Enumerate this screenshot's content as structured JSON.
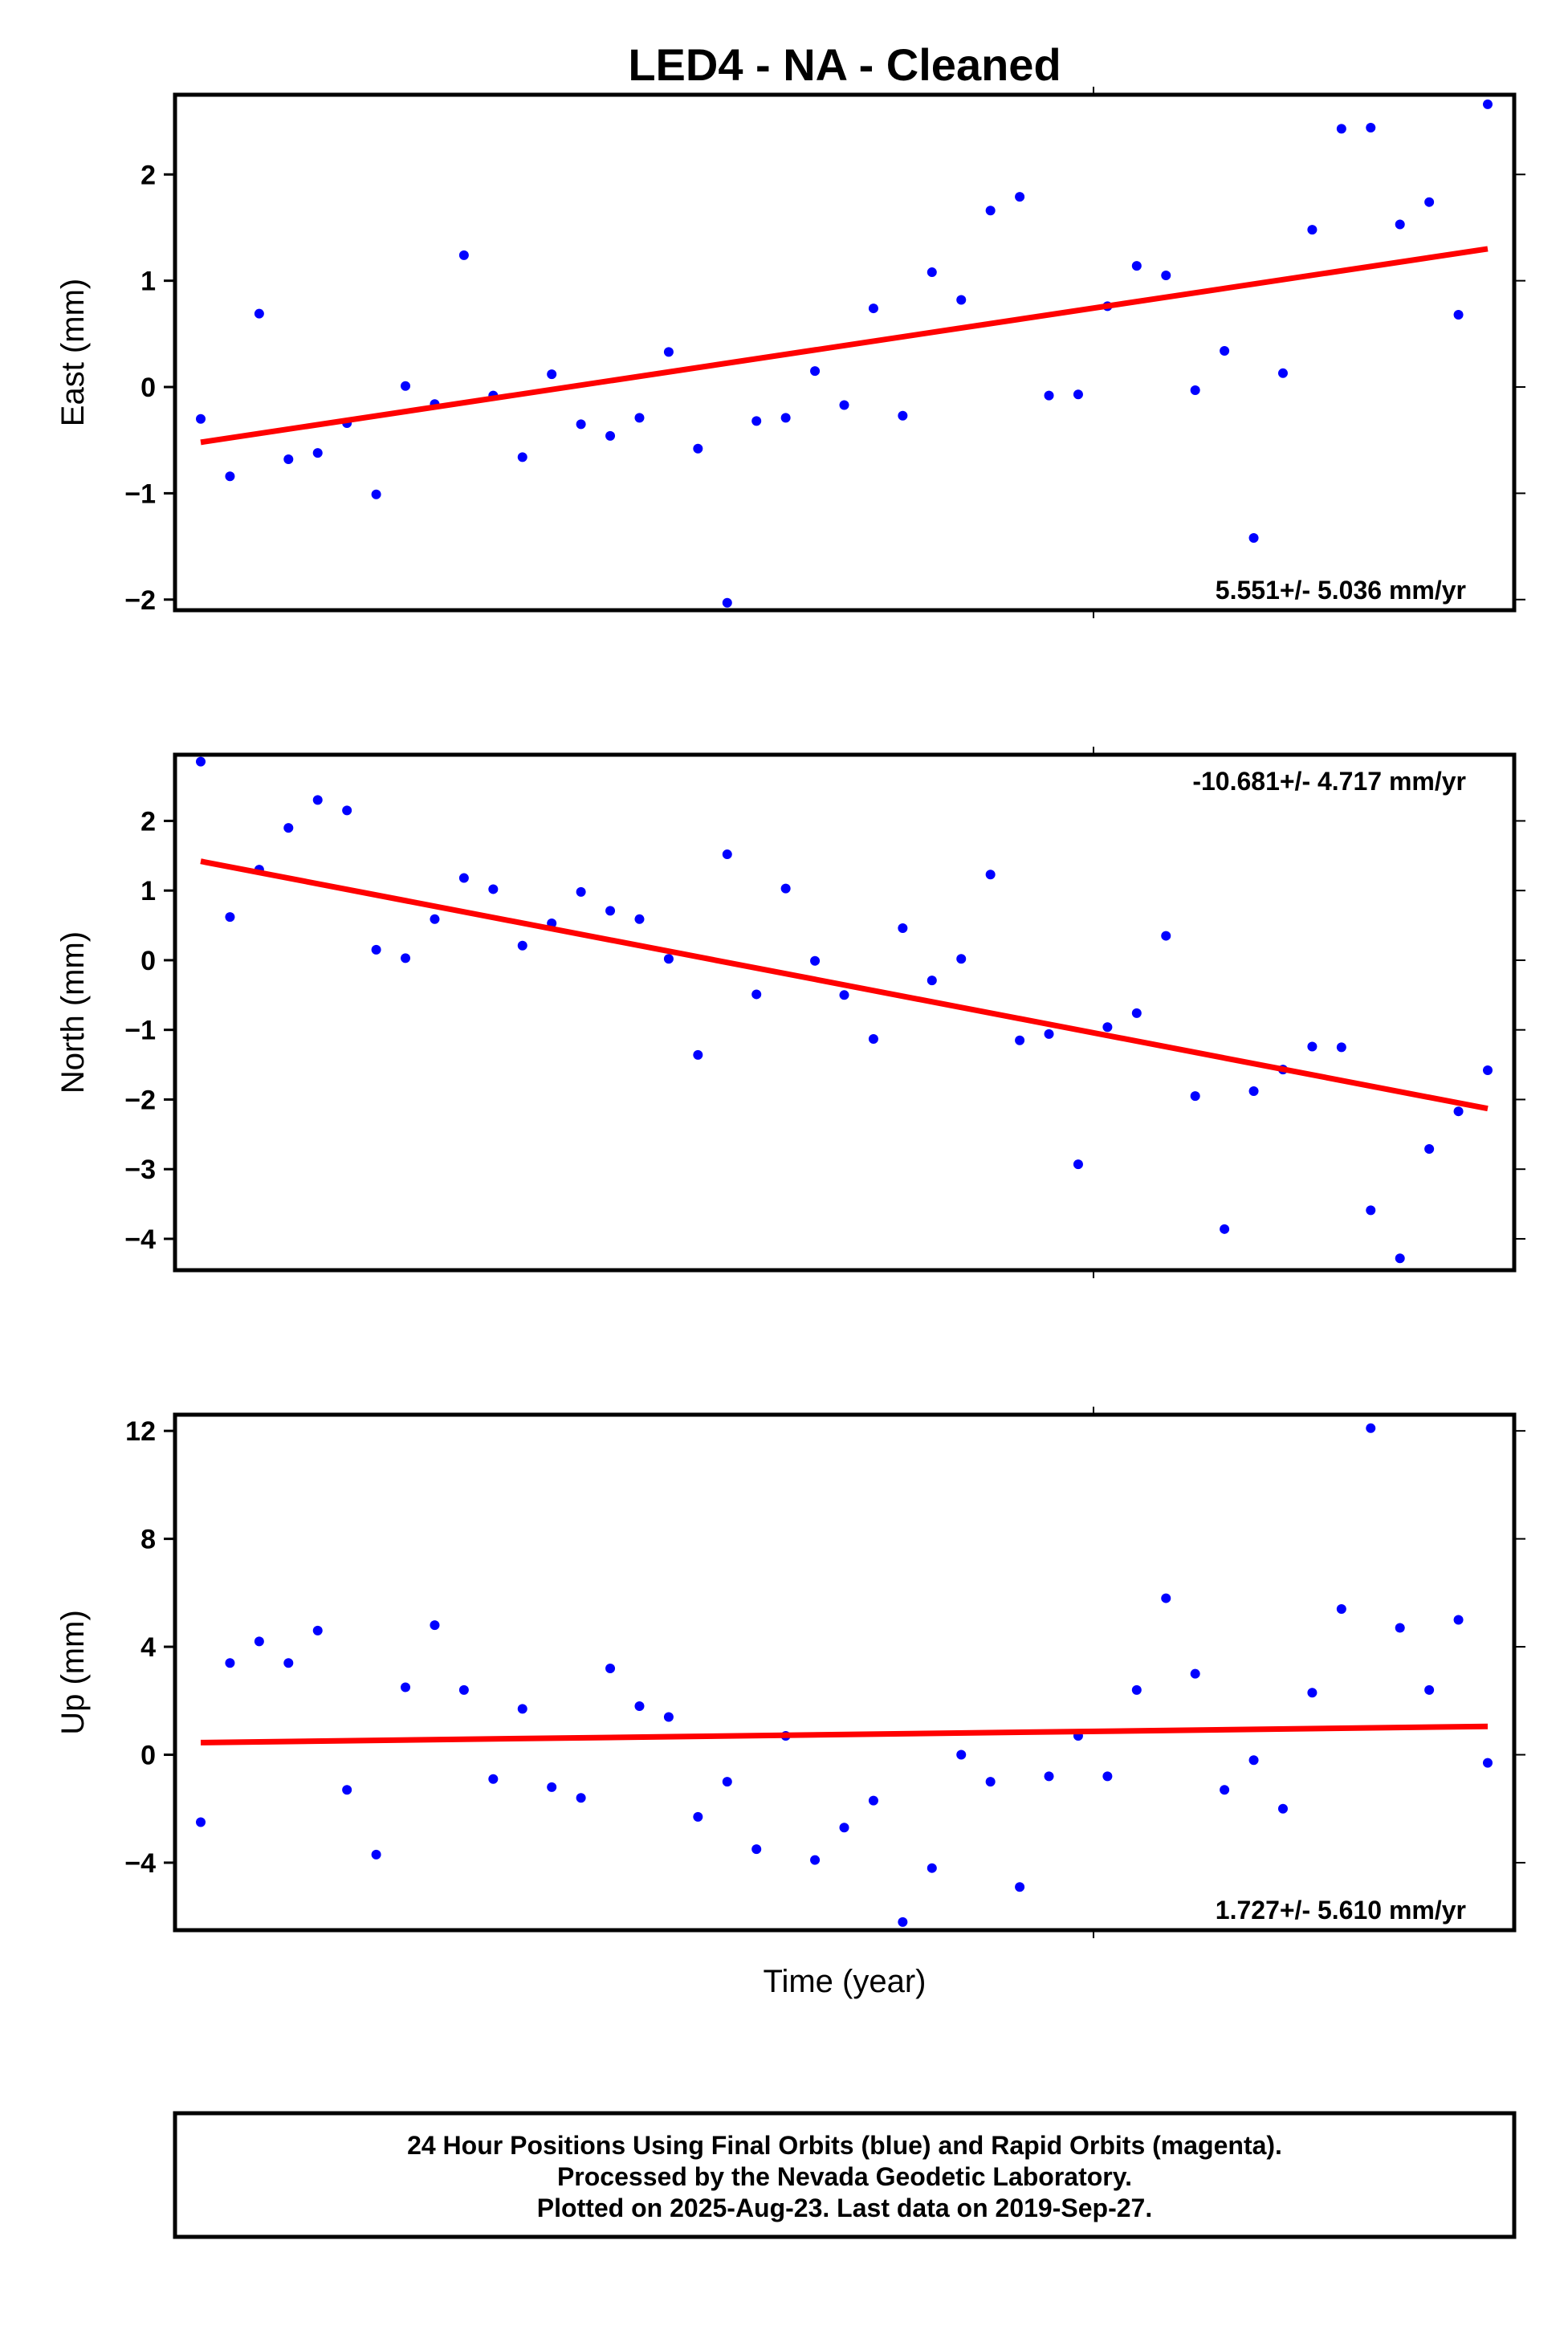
{
  "title": "LED4  - NA - Cleaned",
  "xlabel": "Time (year)",
  "colors": {
    "points": "#0000ff",
    "trend": "#ff0000",
    "frame": "#000000"
  },
  "footer": {
    "line1": "24 Hour Positions Using Final Orbits (blue) and Rapid Orbits (magenta).",
    "line2": "Processed by the Nevada Geodetic Laboratory.",
    "line3": "Plotted on 2025-Aug-23. Last data on 2019-Sep-27."
  },
  "chart_data": [
    {
      "type": "scatter",
      "ylabel": "East (mm)",
      "ylim": [
        -2.1,
        2.75
      ],
      "yticks": [
        -2,
        -1,
        0,
        1,
        2
      ],
      "ytick_labels": [
        "−2",
        "−1",
        "0",
        "1",
        "2"
      ],
      "rate_text": "5.551+/- 5.036 mm/yr",
      "rate_position": "bottom-right",
      "trend": {
        "start": -0.52,
        "end": 1.3
      },
      "values": [
        -0.3,
        -0.84,
        0.69,
        -0.68,
        -0.62,
        -0.34,
        -1.01,
        0.01,
        -0.16,
        1.24,
        -0.08,
        -0.66,
        0.12,
        -0.35,
        -0.46,
        -0.29,
        0.33,
        -0.58,
        -2.03,
        -0.32,
        -0.29,
        0.15,
        -0.17,
        0.74,
        -0.27,
        1.08,
        0.82,
        1.66,
        1.79,
        -0.08,
        -0.07,
        0.76,
        1.14,
        1.05,
        -0.03,
        0.34,
        -1.42,
        0.13,
        1.48,
        2.43,
        2.44,
        1.53,
        1.74,
        0.68,
        2.66
      ]
    },
    {
      "type": "scatter",
      "ylabel": "North (mm)",
      "ylim": [
        -4.45,
        2.95
      ],
      "yticks": [
        -4,
        -3,
        -2,
        -1,
        0,
        1,
        2
      ],
      "ytick_labels": [
        "−4",
        "−3",
        "−2",
        "−1",
        "0",
        "1",
        "2"
      ],
      "rate_text": "-10.681+/- 4.717 mm/yr",
      "rate_position": "top-right",
      "trend": {
        "start": 1.42,
        "end": -2.13
      },
      "values": [
        2.85,
        0.62,
        1.3,
        1.9,
        2.3,
        2.15,
        0.15,
        0.03,
        0.59,
        1.18,
        1.02,
        0.21,
        0.53,
        0.98,
        0.71,
        0.59,
        0.02,
        -1.36,
        1.52,
        -0.49,
        1.03,
        -0.01,
        -0.5,
        -1.13,
        0.46,
        -0.29,
        0.02,
        1.23,
        -1.15,
        -1.06,
        -2.93,
        -0.96,
        -0.76,
        0.35,
        -1.95,
        -3.86,
        -1.88,
        -1.57,
        -1.24,
        -1.25,
        -3.59,
        -4.28,
        -2.71,
        -2.17,
        -1.58
      ]
    },
    {
      "type": "scatter",
      "ylabel": "Up (mm)",
      "ylim": [
        -6.5,
        12.6
      ],
      "yticks": [
        -4,
        0,
        4,
        8,
        12
      ],
      "ytick_labels": [
        "−4",
        "0",
        "4",
        "8",
        "12"
      ],
      "rate_text": "1.727+/- 5.610 mm/yr",
      "rate_position": "bottom-right",
      "trend": {
        "start": 0.45,
        "end": 1.05
      },
      "values": [
        -2.5,
        3.4,
        4.2,
        3.4,
        4.6,
        -1.3,
        -3.7,
        2.5,
        4.8,
        2.4,
        -0.9,
        1.7,
        -1.2,
        -1.6,
        3.2,
        1.8,
        1.4,
        -2.3,
        -1.0,
        -3.5,
        0.7,
        -3.9,
        -2.7,
        -1.7,
        -6.2,
        -4.2,
        0.0,
        -1.0,
        -4.9,
        -0.8,
        0.7,
        -0.8,
        2.4,
        5.8,
        3.0,
        -1.3,
        -0.2,
        -2.0,
        2.3,
        5.4,
        12.1,
        4.7,
        2.4,
        5.0,
        -0.3
      ]
    }
  ]
}
